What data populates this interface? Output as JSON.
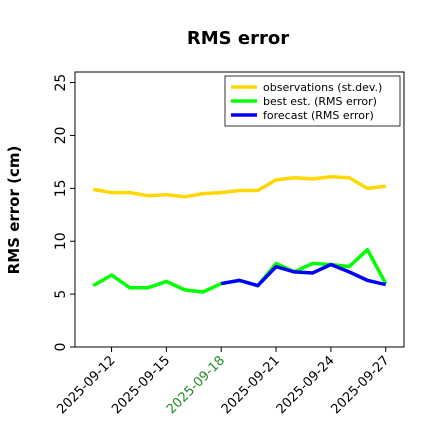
{
  "chart_data": {
    "type": "line",
    "title": "RMS error",
    "xlabel": "",
    "ylabel": "RMS error (cm)",
    "ylim": [
      0,
      26
    ],
    "yticks": [
      0,
      5,
      10,
      15,
      20,
      25
    ],
    "x": [
      "2025-09-11",
      "2025-09-12",
      "2025-09-13",
      "2025-09-14",
      "2025-09-15",
      "2025-09-16",
      "2025-09-17",
      "2025-09-18",
      "2025-09-19",
      "2025-09-20",
      "2025-09-21",
      "2025-09-22",
      "2025-09-23",
      "2025-09-24",
      "2025-09-25",
      "2025-09-26",
      "2025-09-27"
    ],
    "xlim": [
      "2025-09-10",
      "2025-09-28"
    ],
    "xtick_labels": [
      {
        "label": "2025-09-12",
        "date": "2025-09-12",
        "color": "#000000"
      },
      {
        "label": "2025-09-15",
        "date": "2025-09-15",
        "color": "#000000"
      },
      {
        "label": "2025-09-18",
        "date": "2025-09-18",
        "color": "#228b22"
      },
      {
        "label": "2025-09-21",
        "date": "2025-09-21",
        "color": "#000000"
      },
      {
        "label": "2025-09-24",
        "date": "2025-09-24",
        "color": "#000000"
      },
      {
        "label": "2025-09-27",
        "date": "2025-09-27",
        "color": "#000000"
      }
    ],
    "grid": false,
    "legend_position": "top-right",
    "series": [
      {
        "name": "observations (st.dev.)",
        "color": "#ffd700",
        "values": [
          14.9,
          14.6,
          14.6,
          14.3,
          14.4,
          14.2,
          14.5,
          14.6,
          14.8,
          14.8,
          15.8,
          16.0,
          15.9,
          16.1,
          16.0,
          15.0,
          15.2
        ]
      },
      {
        "name": "best est. (RMS error)",
        "color": "#00ff00",
        "values": [
          5.8,
          6.8,
          5.6,
          5.6,
          6.2,
          5.4,
          5.2,
          6.0,
          6.3,
          5.8,
          7.9,
          7.1,
          7.9,
          7.8,
          7.6,
          9.2,
          6.0
        ]
      },
      {
        "name": "forecast (RMS error)",
        "color": "#0000ff",
        "values": [
          null,
          null,
          null,
          null,
          null,
          null,
          null,
          6.0,
          6.3,
          5.8,
          7.6,
          7.1,
          7.0,
          7.8,
          7.1,
          6.3,
          5.9
        ]
      }
    ]
  }
}
